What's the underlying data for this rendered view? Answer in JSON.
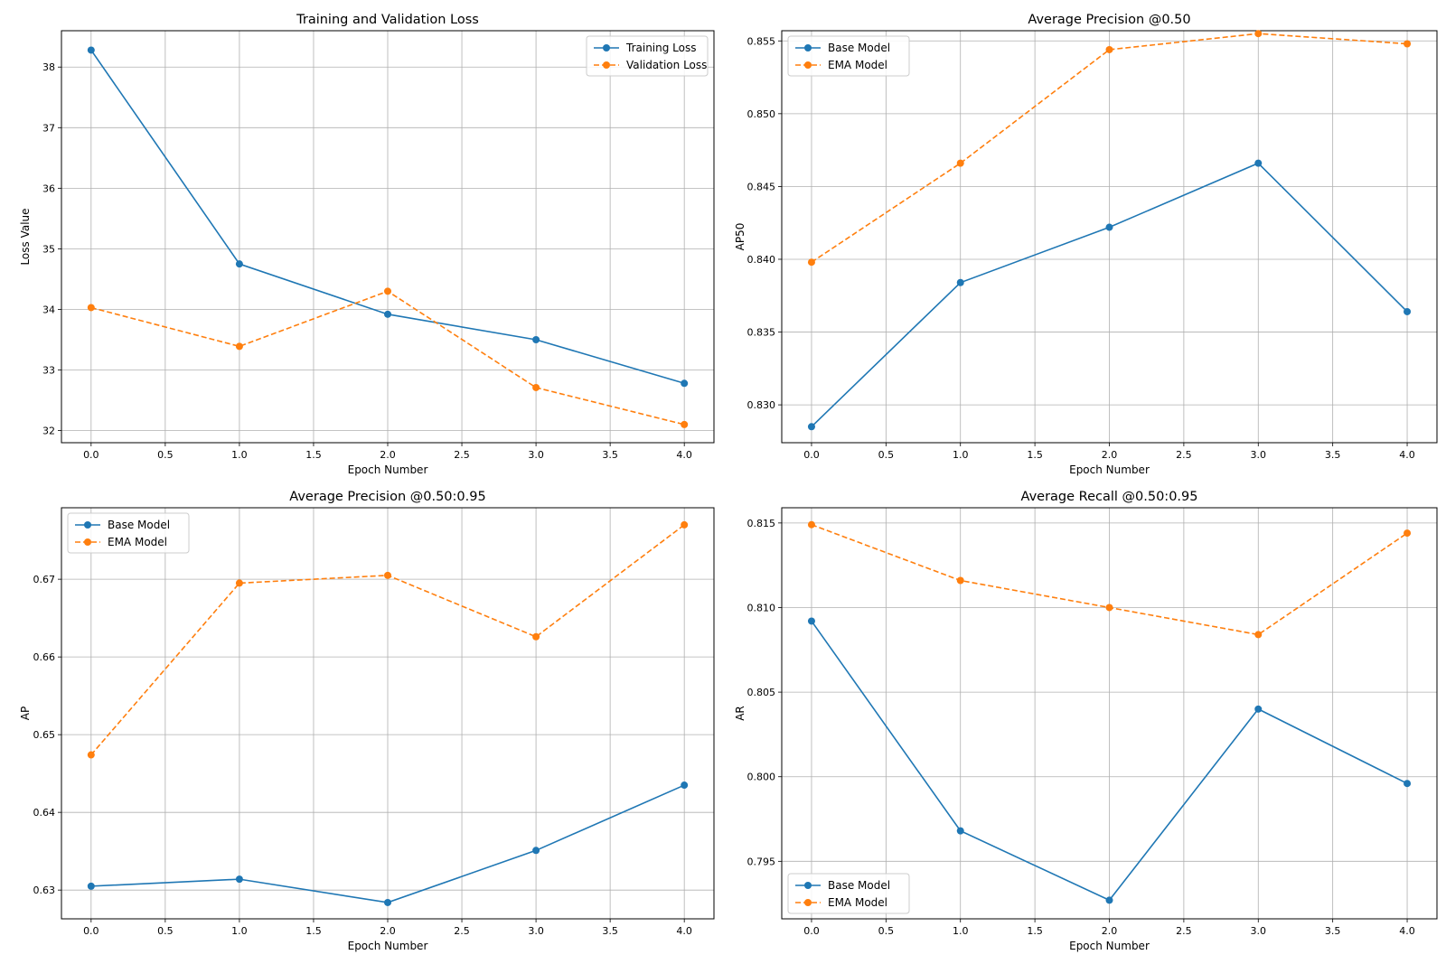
{
  "chart_data": [
    {
      "type": "line",
      "title": "Training and Validation Loss",
      "xlabel": "Epoch Number",
      "ylabel": "Loss Value",
      "x": [
        0,
        1,
        2,
        3,
        4
      ],
      "xlim": [
        -0.2,
        4.2
      ],
      "ylim": [
        31.8,
        38.6
      ],
      "xticks": [
        0.0,
        0.5,
        1.0,
        1.5,
        2.0,
        2.5,
        3.0,
        3.5,
        4.0
      ],
      "xtick_labels": [
        "0.0",
        "0.5",
        "1.0",
        "1.5",
        "2.0",
        "2.5",
        "3.0",
        "3.5",
        "4.0"
      ],
      "yticks": [
        32,
        33,
        34,
        35,
        36,
        37,
        38
      ],
      "ytick_labels": [
        "32",
        "33",
        "34",
        "35",
        "36",
        "37",
        "38"
      ],
      "grid": true,
      "legend_position": "top-right",
      "series": [
        {
          "name": "Training Loss",
          "values": [
            38.28,
            34.75,
            33.92,
            33.5,
            32.78
          ],
          "color": "#1f77b4",
          "style": "solid"
        },
        {
          "name": "Validation Loss",
          "values": [
            34.03,
            33.39,
            34.3,
            32.71,
            32.1
          ],
          "color": "#ff7f0e",
          "style": "dashed"
        }
      ]
    },
    {
      "type": "line",
      "title": "Average Precision @0.50",
      "xlabel": "Epoch Number",
      "ylabel": "AP50",
      "x": [
        0,
        1,
        2,
        3,
        4
      ],
      "xlim": [
        -0.2,
        4.2
      ],
      "ylim": [
        0.8274,
        0.8557
      ],
      "xticks": [
        0.0,
        0.5,
        1.0,
        1.5,
        2.0,
        2.5,
        3.0,
        3.5,
        4.0
      ],
      "xtick_labels": [
        "0.0",
        "0.5",
        "1.0",
        "1.5",
        "2.0",
        "2.5",
        "3.0",
        "3.5",
        "4.0"
      ],
      "yticks": [
        0.83,
        0.835,
        0.84,
        0.845,
        0.85,
        0.855
      ],
      "ytick_labels": [
        "0.830",
        "0.835",
        "0.840",
        "0.845",
        "0.850",
        "0.855"
      ],
      "grid": true,
      "legend_position": "top-left",
      "series": [
        {
          "name": "Base Model",
          "values": [
            0.8285,
            0.8384,
            0.8422,
            0.8466,
            0.8364
          ],
          "color": "#1f77b4",
          "style": "solid"
        },
        {
          "name": "EMA Model",
          "values": [
            0.8398,
            0.8466,
            0.8544,
            0.8555,
            0.8548
          ],
          "color": "#ff7f0e",
          "style": "dashed"
        }
      ]
    },
    {
      "type": "line",
      "title": "Average Precision @0.50:0.95",
      "xlabel": "Epoch Number",
      "ylabel": "AP",
      "x": [
        0,
        1,
        2,
        3,
        4
      ],
      "xlim": [
        -0.2,
        4.2
      ],
      "ylim": [
        0.6263,
        0.6792
      ],
      "xticks": [
        0.0,
        0.5,
        1.0,
        1.5,
        2.0,
        2.5,
        3.0,
        3.5,
        4.0
      ],
      "xtick_labels": [
        "0.0",
        "0.5",
        "1.0",
        "1.5",
        "2.0",
        "2.5",
        "3.0",
        "3.5",
        "4.0"
      ],
      "yticks": [
        0.63,
        0.64,
        0.65,
        0.66,
        0.67
      ],
      "ytick_labels": [
        "0.63",
        "0.64",
        "0.65",
        "0.66",
        "0.67"
      ],
      "grid": true,
      "legend_position": "top-left",
      "series": [
        {
          "name": "Base Model",
          "values": [
            0.6305,
            0.6314,
            0.6284,
            0.6351,
            0.6435
          ],
          "color": "#1f77b4",
          "style": "solid"
        },
        {
          "name": "EMA Model",
          "values": [
            0.6474,
            0.6695,
            0.6705,
            0.6626,
            0.677
          ],
          "color": "#ff7f0e",
          "style": "dashed"
        }
      ]
    },
    {
      "type": "line",
      "title": "Average Recall @0.50:0.95",
      "xlabel": "Epoch Number",
      "ylabel": "AR",
      "x": [
        0,
        1,
        2,
        3,
        4
      ],
      "xlim": [
        -0.2,
        4.2
      ],
      "ylim": [
        0.7916,
        0.8159
      ],
      "xticks": [
        0.0,
        0.5,
        1.0,
        1.5,
        2.0,
        2.5,
        3.0,
        3.5,
        4.0
      ],
      "xtick_labels": [
        "0.0",
        "0.5",
        "1.0",
        "1.5",
        "2.0",
        "2.5",
        "3.0",
        "3.5",
        "4.0"
      ],
      "yticks": [
        0.795,
        0.8,
        0.805,
        0.81,
        0.815
      ],
      "ytick_labels": [
        "0.795",
        "0.800",
        "0.805",
        "0.810",
        "0.815"
      ],
      "grid": true,
      "legend_position": "bottom-left",
      "series": [
        {
          "name": "Base Model",
          "values": [
            0.8092,
            0.7968,
            0.7927,
            0.804,
            0.7996
          ],
          "color": "#1f77b4",
          "style": "solid"
        },
        {
          "name": "EMA Model",
          "values": [
            0.8149,
            0.8116,
            0.81,
            0.8084,
            0.8144
          ],
          "color": "#ff7f0e",
          "style": "dashed"
        }
      ]
    }
  ]
}
